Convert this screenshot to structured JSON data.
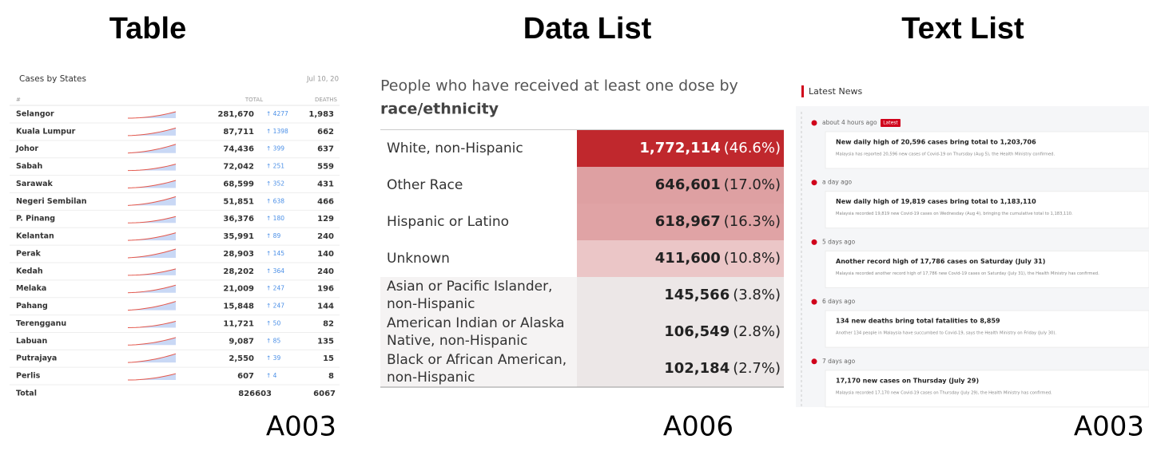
{
  "table_panel": {
    "title": "Table",
    "code": "A003",
    "header": "Cases by States",
    "date": "Jul 10, 20",
    "columns": [
      "#",
      "TOTAL",
      "DEATHS"
    ],
    "rows": [
      [
        "Selangor",
        "281,670",
        "↑ 4277",
        "1,983"
      ],
      [
        "Kuala Lumpur",
        "87,711",
        "↑ 1398",
        "662"
      ],
      [
        "Johor",
        "74,436",
        "↑ 399",
        "637"
      ],
      [
        "Sabah",
        "72,042",
        "↑ 251",
        "559"
      ],
      [
        "Sarawak",
        "68,599",
        "↑ 352",
        "431"
      ],
      [
        "Negeri Sembilan",
        "51,851",
        "↑ 638",
        "466"
      ],
      [
        "P. Pinang",
        "36,376",
        "↑ 180",
        "129"
      ],
      [
        "Kelantan",
        "35,991",
        "↑ 89",
        "240"
      ],
      [
        "Perak",
        "28,903",
        "↑ 145",
        "140"
      ],
      [
        "Kedah",
        "28,202",
        "↑ 364",
        "240"
      ],
      [
        "Melaka",
        "21,009",
        "↑ 247",
        "196"
      ],
      [
        "Pahang",
        "15,848",
        "↑ 247",
        "144"
      ],
      [
        "Terengganu",
        "11,721",
        "↑ 50",
        "82"
      ],
      [
        "Labuan",
        "9,087",
        "↑ 85",
        "135"
      ],
      [
        "Putrajaya",
        "2,550",
        "↑ 39",
        "15"
      ],
      [
        "Perlis",
        "607",
        "↑ 4",
        "8"
      ]
    ],
    "footer": [
      "Total",
      "826603",
      "6067"
    ]
  },
  "data_list_panel": {
    "title": "Data List",
    "code": "A006",
    "heading": [
      "People who have received at least one dose by",
      "race/ethnicity"
    ],
    "rows": [
      {
        "label": [
          "White, non-Hispanic"
        ],
        "value": "1,772,114",
        "percent": "(46.6%)",
        "color": "#c0282d"
      },
      {
        "label": [
          "Other Race"
        ],
        "value": "646,601",
        "percent": "(17.0%)",
        "color": "#dea0a2"
      },
      {
        "label": [
          "Hispanic or Latino"
        ],
        "value": "618,967",
        "percent": "(16.3%)",
        "color": "#e0a3a5"
      },
      {
        "label": [
          "Unknown"
        ],
        "value": "411,600",
        "percent": "(10.8%)",
        "color": "#ebc6c7"
      },
      {
        "label": [
          "Asian or Pacific Islander,",
          "non-Hispanic"
        ],
        "value": "145,566",
        "percent": "(3.8%)",
        "color": "#ece7e7"
      },
      {
        "label": [
          "American Indian or Alaska",
          "Native, non-Hispanic"
        ],
        "value": "106,549",
        "percent": "(2.8%)",
        "color": "#ece7e7"
      },
      {
        "label": [
          "Black or African American,",
          "non-Hispanic"
        ],
        "value": "102,184",
        "percent": "(2.7%)",
        "color": "#ece7e7"
      }
    ]
  },
  "text_list_panel": {
    "title": "Text List",
    "code": "A003",
    "header": "Latest News",
    "items": [
      {
        "time": "about 4 hours ago",
        "badge": "Latest",
        "headline": "New daily high of 20,596 cases bring total to 1,203,706",
        "summary": "Malaysia has reported 20,596 new cases of Covid-19 on Thursday (Aug 5), the Health Ministry confirmed."
      },
      {
        "time": "a day ago",
        "headline": "New daily high of 19,819 cases bring total to 1,183,110",
        "summary": "Malaysia recorded 19,819 new Covid-19 cases on Wednesday (Aug 4), bringing the cumulative total to 1,183,110."
      },
      {
        "time": "5 days ago",
        "headline": "Another record high of 17,786 cases on Saturday (July 31)",
        "summary": "Malaysia recorded another record high of 17,786 new Covid-19 cases on Saturday (July 31), the Health Ministry has confirmed."
      },
      {
        "time": "6 days ago",
        "headline": "134 new deaths bring total fatalities to 8,859",
        "summary": "Another 134 people in Malaysia have succumbed to Covid-19, says the Health Ministry on Friday (July 30)."
      },
      {
        "time": "7 days ago",
        "headline": "17,170 new cases on Thursday (July 29)",
        "summary": "Malaysia recorded 17,170 new Covid-19 cases on Thursday (July 29), the Health Ministry has confirmed."
      }
    ]
  }
}
